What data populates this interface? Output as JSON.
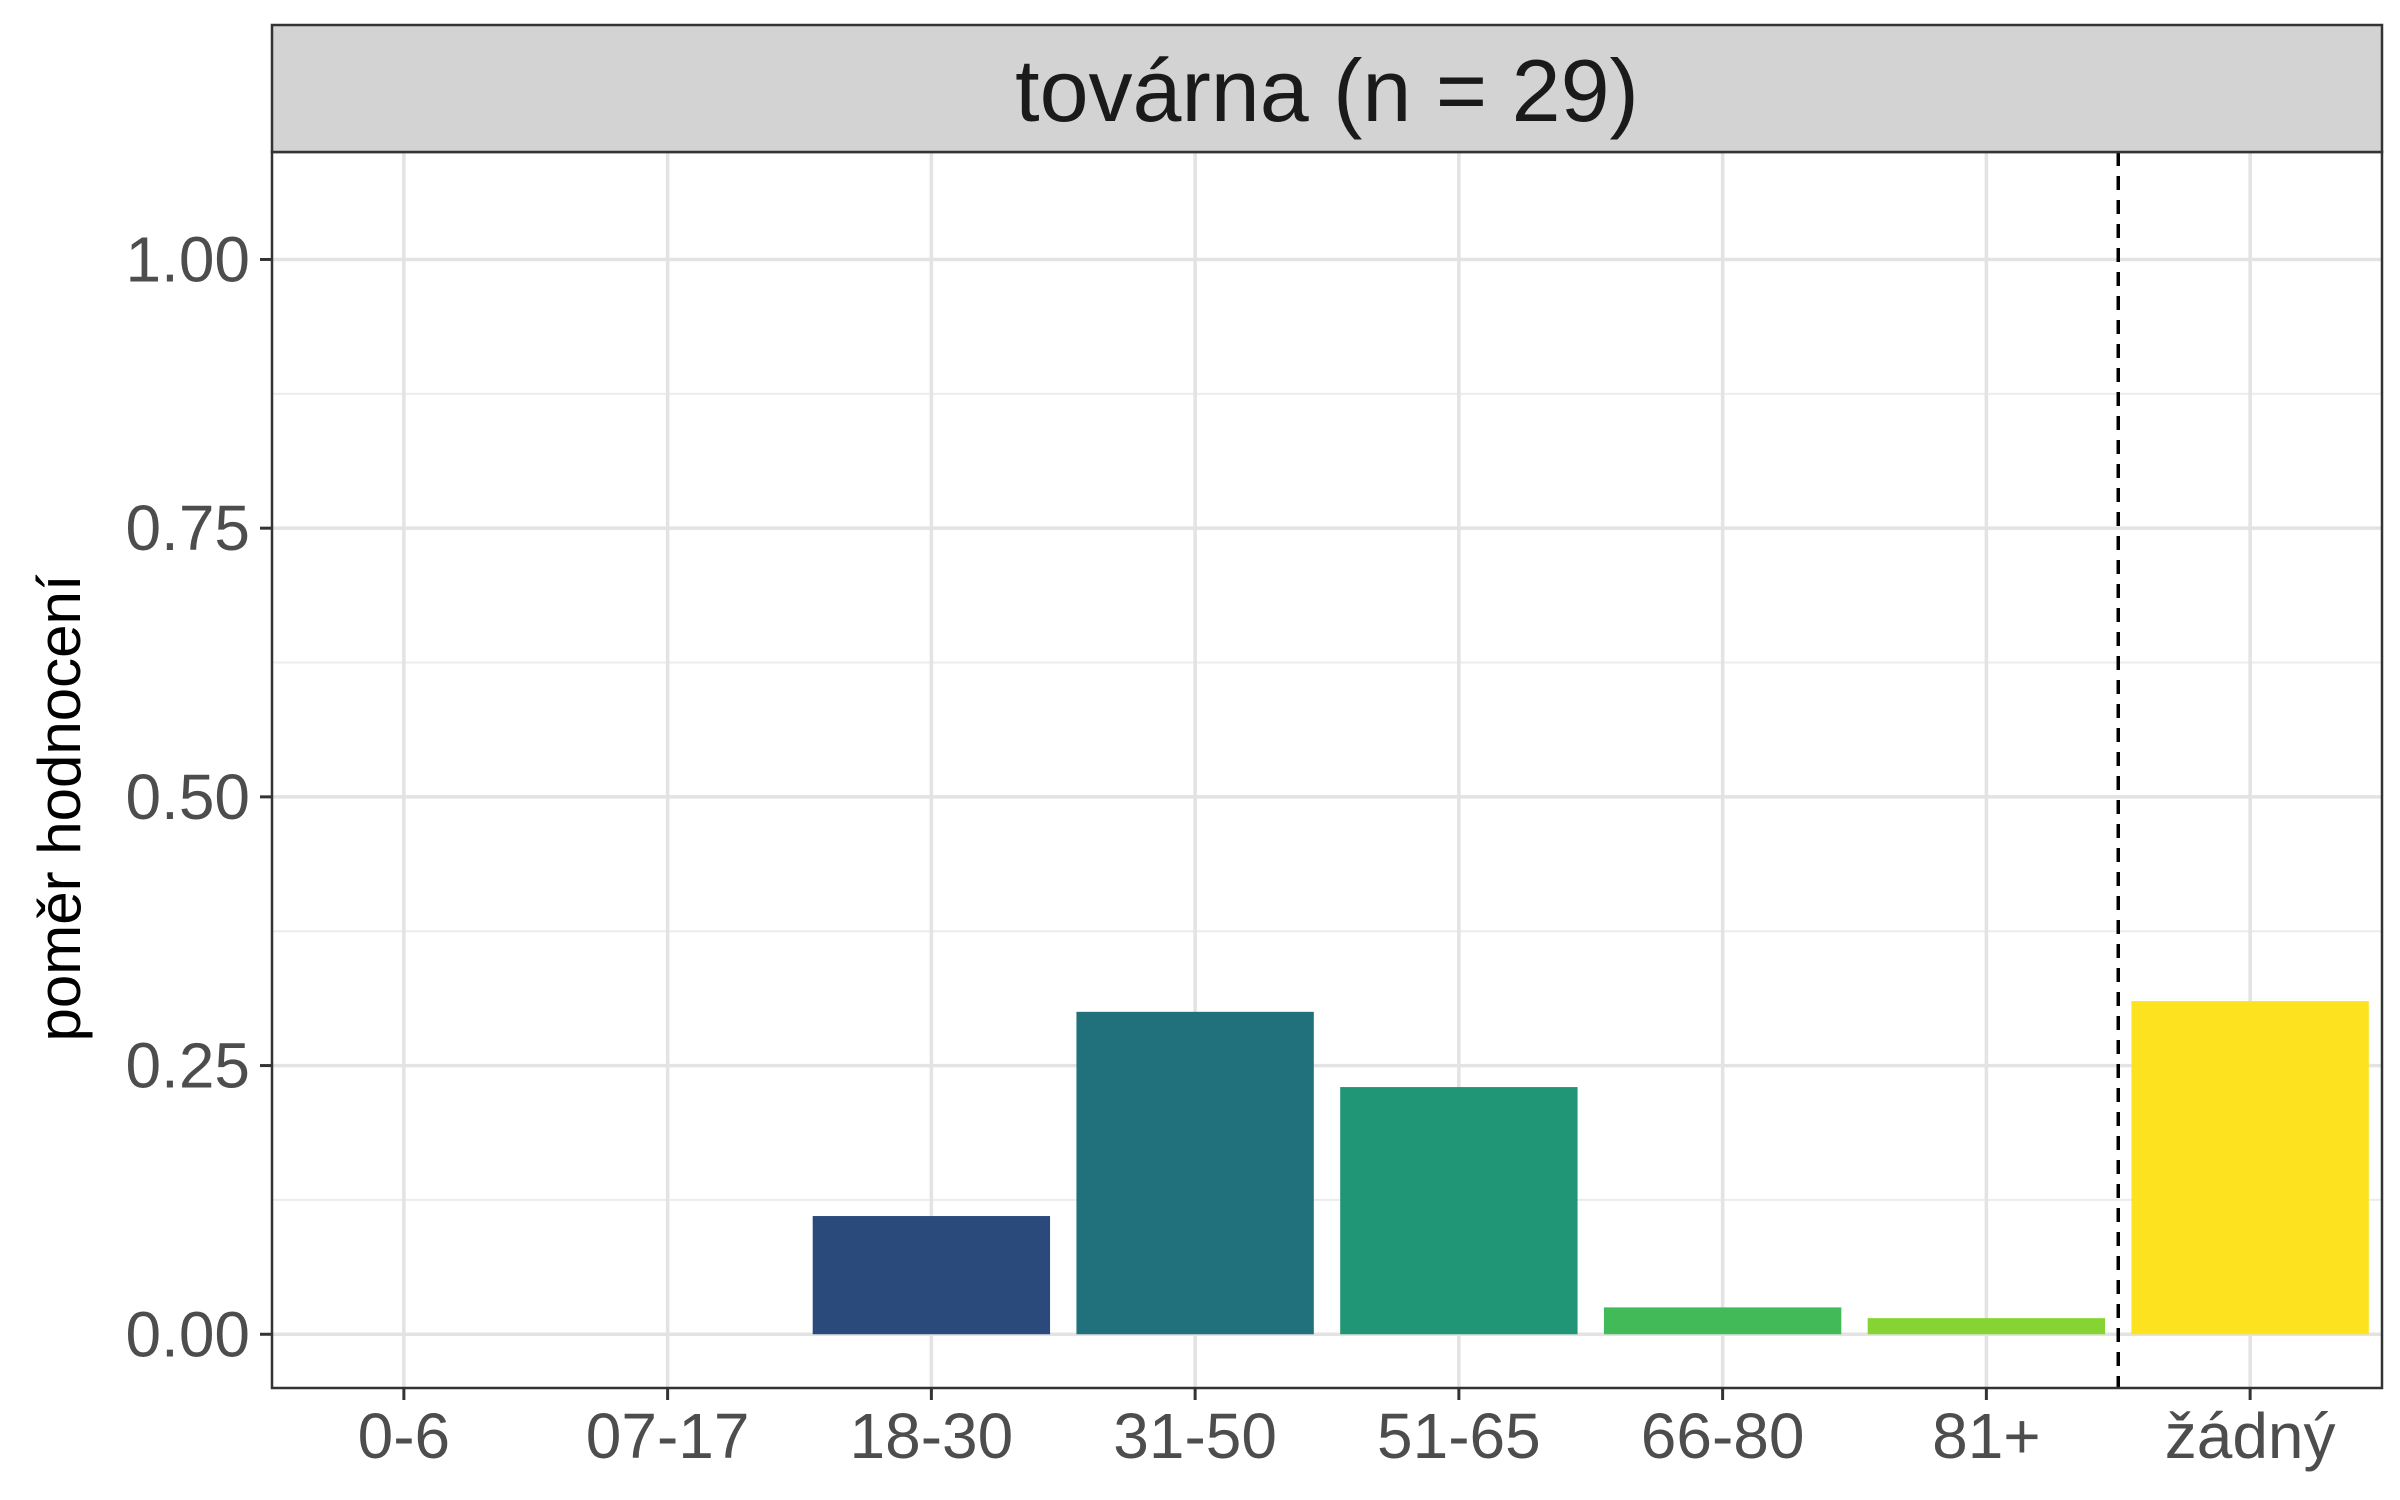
{
  "chart_data": {
    "type": "bar",
    "title": "továrna (n = 29)",
    "xlabel": "",
    "ylabel": "poměr hodnocení",
    "categories": [
      "0-6",
      "07-17",
      "18-30",
      "31-50",
      "51-65",
      "66-80",
      "81+",
      "žádný"
    ],
    "values": [
      0.0,
      0.0,
      0.11,
      0.3,
      0.23,
      0.025,
      0.015,
      0.31
    ],
    "colors": [
      "#440154",
      "#46327e",
      "#2a4a7b",
      "#21717c",
      "#219676",
      "#43ba58",
      "#86d433",
      "#fde31f"
    ],
    "ylim": [
      -0.05,
      1.1
    ],
    "yticks": [
      0.0,
      0.25,
      0.5,
      0.75,
      1.0
    ],
    "ytick_labels": [
      "0.00",
      "0.25",
      "0.50",
      "0.75",
      "1.00"
    ],
    "grid": true,
    "separator_after_category": "81+",
    "separator_style": "dashed"
  }
}
